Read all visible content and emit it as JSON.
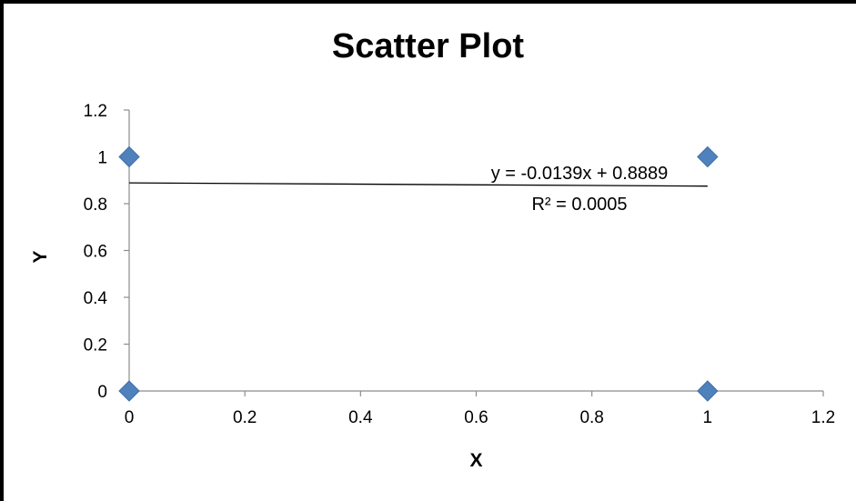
{
  "chart_data": {
    "type": "scatter",
    "title": "Scatter Plot",
    "xlabel": "X",
    "ylabel": "Y",
    "xlim": [
      0,
      1.2
    ],
    "ylim": [
      0,
      1.2
    ],
    "xticks": [
      "0",
      "0.2",
      "0.4",
      "0.6",
      "0.8",
      "1",
      "1.2"
    ],
    "yticks": [
      "0",
      "0.2",
      "0.4",
      "0.6",
      "0.8",
      "1",
      "1.2"
    ],
    "grid": false,
    "series": [
      {
        "x": [
          0,
          0,
          1,
          1
        ],
        "y": [
          1,
          0,
          1,
          0
        ],
        "color": "#4F81BD",
        "marker": "diamond"
      }
    ],
    "trendline": {
      "type": "linear",
      "slope": -0.0139,
      "intercept": 0.8889,
      "x_range": [
        0,
        1
      ],
      "equation_label": "y = -0.0139x + 0.8889",
      "r2_label": "R² = 0.0005",
      "color": "#000000"
    }
  }
}
